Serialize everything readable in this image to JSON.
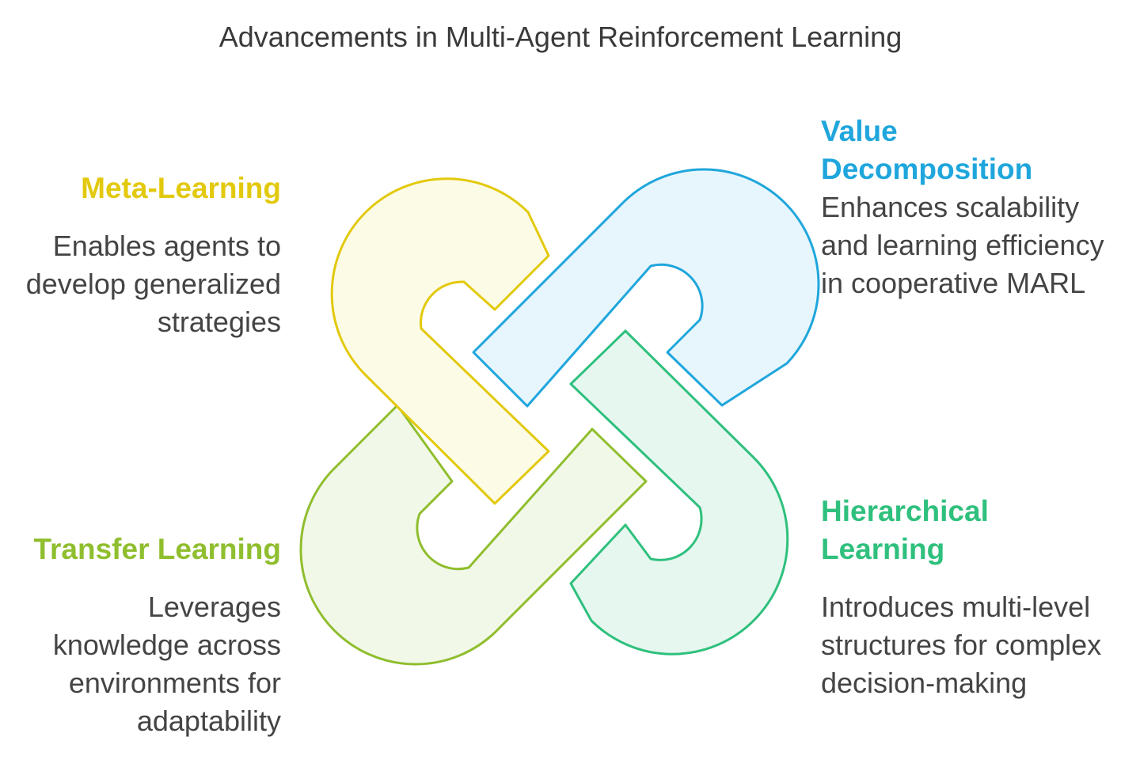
{
  "title": "Advancements in Multi-Agent Reinforcement Learning",
  "items": [
    {
      "heading": "Meta-Learning",
      "description": "Enables agents to develop generalized strategies",
      "color": "#e2c90d",
      "fill": "#fcfbe6"
    },
    {
      "heading": "Value Decomposition",
      "description": "Enhances scalability and learning efficiency in cooperative MARL",
      "color": "#1fa6dc",
      "fill": "#e6f6fc"
    },
    {
      "heading": "Transfer Learning",
      "description": "Leverages knowledge across environments for adaptability",
      "color": "#8fbe2e",
      "fill": "#f2f8e8"
    },
    {
      "heading": "Hierarchical Learning",
      "description": "Introduces multi-level structures for complex decision-making",
      "color": "#2fc07d",
      "fill": "#e6f7ef"
    }
  ]
}
